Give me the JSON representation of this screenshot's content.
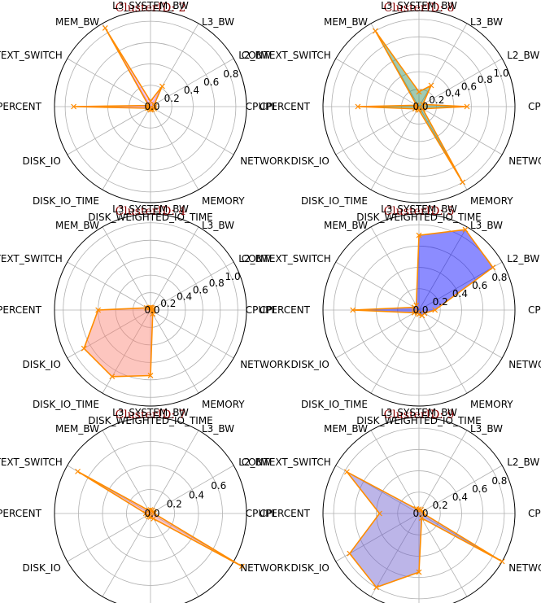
{
  "chart_data": [
    {
      "type": "radar",
      "title": "ClusterID: 2",
      "axes": [
        "CPI",
        "L2_BW",
        "L3_BW",
        "L3_SYSTEM_BW",
        "MEM_BW",
        "CONTEXT_SWITCH",
        "CPUPERCENT",
        "DISK_IO",
        "DISK_IO_TIME",
        "DISK_WEIGHTED_IO_TIME",
        "MEMORY",
        "NETWORK"
      ],
      "values": [
        0.04,
        0.04,
        0.22,
        0.05,
        0.85,
        0.02,
        0.72,
        0.03,
        0.02,
        0.03,
        0.03,
        0.04
      ],
      "rmax": 0.9,
      "rticks": [
        0.0,
        0.2,
        0.4,
        0.6,
        0.8
      ],
      "fill": "#ee82ee"
    },
    {
      "type": "radar",
      "title": "ClusterID: 8",
      "axes": [
        "CPI",
        "L2_BW",
        "L3_BW",
        "L3_SYSTEM_BW",
        "MEM_BW",
        "CONTEXT_SWITCH",
        "CPUPERCENT",
        "DISK_IO",
        "DISK_IO_TIME",
        "DISK_WEIGHTED_IO_TIME",
        "MEMORY",
        "NETWORK"
      ],
      "values": [
        0.55,
        0.05,
        0.28,
        0.17,
        1.0,
        0.03,
        0.7,
        0.05,
        0.03,
        0.04,
        1.0,
        0.05
      ],
      "rmax": 1.1,
      "rticks": [
        0.0,
        0.2,
        0.4,
        0.6,
        0.8,
        1.0
      ],
      "fill": "#2e8b57"
    },
    {
      "type": "radar",
      "title": "ClusterID: 4",
      "axes": [
        "CPI",
        "L2_BW",
        "L3_BW",
        "L3_SYSTEM_BW",
        "MEM_BW",
        "CONTEXT_SWITCH",
        "CPUPERCENT",
        "DISK_IO",
        "DISK_IO_TIME",
        "DISK_WEIGHTED_IO_TIME",
        "MEMORY",
        "NETWORK"
      ],
      "values": [
        0.03,
        0.03,
        0.03,
        0.03,
        0.03,
        0.05,
        0.6,
        0.88,
        0.88,
        0.75,
        0.05,
        0.03
      ],
      "rmax": 1.1,
      "rticks": [
        0.0,
        0.2,
        0.4,
        0.6,
        0.8,
        1.0
      ],
      "fill": "#fa8072"
    },
    {
      "type": "radar",
      "title": "ClusterID: 5",
      "axes": [
        "CPI",
        "L2_BW",
        "L3_BW",
        "L3_SYSTEM_BW",
        "MEM_BW",
        "CONTEXT_SWITCH",
        "CPUPERCENT",
        "DISK_IO",
        "DISK_IO_TIME",
        "DISK_WEIGHTED_IO_TIME",
        "MEMORY",
        "NETWORK"
      ],
      "values": [
        0.15,
        0.8,
        0.87,
        0.7,
        0.05,
        0.05,
        0.62,
        0.05,
        0.03,
        0.04,
        0.06,
        0.06
      ],
      "rmax": 0.9,
      "rticks": [
        0.0,
        0.2,
        0.4,
        0.6,
        0.8
      ],
      "fill": "#0000ff"
    },
    {
      "type": "radar",
      "title": "ClusterID: 7",
      "axes": [
        "CPI",
        "L2_BW",
        "L3_BW",
        "L3_SYSTEM_BW",
        "MEM_BW",
        "CONTEXT_SWITCH",
        "CPUPERCENT",
        "DISK_IO",
        "DISK_IO_TIME",
        "DISK_WEIGHTED_IO_TIME",
        "MEMORY",
        "NETWORK"
      ],
      "values": [
        0.03,
        0.03,
        0.03,
        0.03,
        0.03,
        0.7,
        0.04,
        0.03,
        0.03,
        0.03,
        0.05,
        0.88
      ],
      "rmax": 0.8,
      "rticks": [
        0.0,
        0.2,
        0.4,
        0.6
      ],
      "fill": "#f08080"
    },
    {
      "type": "radar",
      "title": "ClusterID: 9",
      "axes": [
        "CPI",
        "L2_BW",
        "L3_BW",
        "L3_SYSTEM_BW",
        "MEM_BW",
        "CONTEXT_SWITCH",
        "CPUPERCENT",
        "DISK_IO",
        "DISK_IO_TIME",
        "DISK_WEIGHTED_IO_TIME",
        "MEMORY",
        "NETWORK"
      ],
      "values": [
        0.04,
        0.04,
        0.04,
        0.04,
        0.05,
        0.78,
        0.37,
        0.75,
        0.8,
        0.55,
        0.05,
        0.9
      ],
      "rmax": 0.9,
      "rticks": [
        0.0,
        0.2,
        0.4,
        0.6,
        0.8
      ],
      "fill": "#6a5acd"
    }
  ],
  "style": {
    "line_color": "#ff8c00",
    "grid_color": "#b0b0b0",
    "title_color": "#8b0000"
  }
}
